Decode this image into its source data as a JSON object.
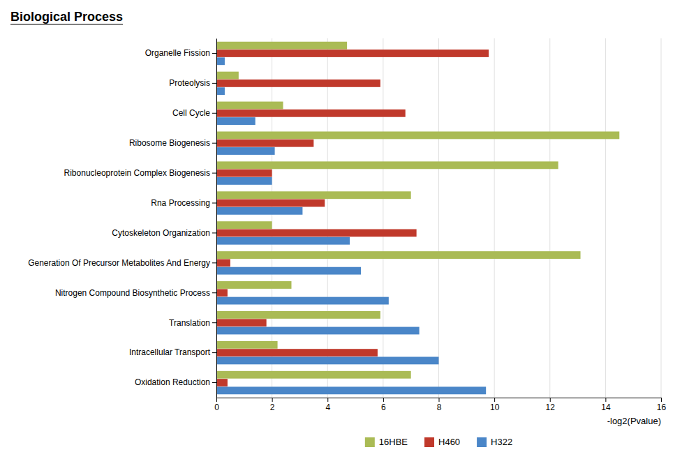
{
  "chart_data": {
    "type": "bar",
    "orientation": "horizontal",
    "title": "Biological Process",
    "xlabel": "-log2(Pvalue)",
    "categories": [
      "Oxidation Reduction",
      "Intracellular Transport",
      "Translation",
      "Nitrogen Compound Biosynthetic Process",
      "Generation Of Precursor Metabolites And Energy",
      "Cytoskeleton Organization",
      "Rna Processing",
      "Ribonucleoprotein Complex Biogenesis",
      "Ribosome Biogenesis",
      "Cell Cycle",
      "Proteolysis",
      "Organelle Fission"
    ],
    "series": [
      {
        "name": "16HBE",
        "color": "#aabb55",
        "values": [
          7.0,
          2.2,
          5.9,
          2.7,
          13.1,
          2.0,
          7.0,
          12.3,
          14.5,
          2.4,
          0.8,
          4.7
        ]
      },
      {
        "name": "H460",
        "color": "#c0392b",
        "values": [
          0.4,
          5.8,
          1.8,
          0.4,
          0.5,
          7.2,
          3.9,
          2.0,
          3.5,
          6.8,
          5.9,
          9.8
        ]
      },
      {
        "name": "H322",
        "color": "#4a86c8",
        "values": [
          9.7,
          8.0,
          7.3,
          6.2,
          5.2,
          4.8,
          3.1,
          2.0,
          2.1,
          1.4,
          0.3,
          0.3
        ]
      }
    ],
    "xlim": [
      0,
      16
    ],
    "xticks": [
      0,
      2,
      4,
      6,
      8,
      10,
      12,
      14,
      16
    ],
    "grid": true,
    "legend": "bottom"
  }
}
